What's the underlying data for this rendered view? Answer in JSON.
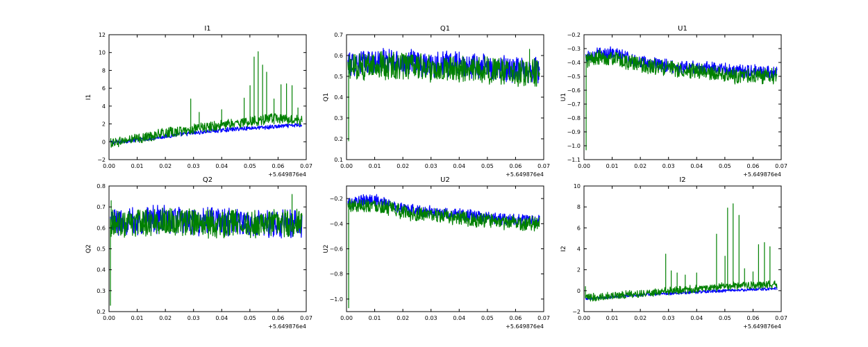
{
  "chart_data": [
    {
      "type": "line",
      "title": "I1",
      "ylabel": "I1",
      "xlabel": "",
      "x_offset_label": "+5.649876e4",
      "xlim": [
        0.0,
        0.07
      ],
      "ylim": [
        -2,
        12
      ],
      "xticks": [
        "0.00",
        "0.01",
        "0.02",
        "0.03",
        "0.04",
        "0.05",
        "0.06",
        "0.07"
      ],
      "yticks": [
        "−2",
        "0",
        "2",
        "4",
        "6",
        "8",
        "10",
        "12"
      ],
      "x_extent": [
        0.0005,
        0.0685
      ],
      "series": [
        {
          "color": "#0000ff",
          "values": [
            -0.1,
            0.05,
            0.2,
            0.35,
            0.55,
            0.75,
            0.9,
            1.05,
            1.2,
            1.35,
            1.45,
            1.55,
            1.6,
            1.7,
            1.8,
            1.9
          ],
          "spread": 0.25
        },
        {
          "color": "#008000",
          "values": [
            -0.1,
            0.1,
            0.3,
            0.6,
            0.9,
            1.1,
            1.3,
            1.5,
            1.7,
            1.9,
            2.1,
            2.3,
            2.5,
            2.6,
            2.5,
            2.4
          ],
          "spread": 0.6,
          "spikes": [
            [
              0.029,
              4.8
            ],
            [
              0.032,
              3.3
            ],
            [
              0.04,
              3.6
            ],
            [
              0.048,
              4.9
            ],
            [
              0.05,
              6.3
            ],
            [
              0.0515,
              9.5
            ],
            [
              0.053,
              10.1
            ],
            [
              0.0545,
              8.6
            ],
            [
              0.056,
              7.8
            ],
            [
              0.0585,
              4.8
            ],
            [
              0.061,
              6.4
            ],
            [
              0.063,
              6.5
            ],
            [
              0.065,
              6.3
            ],
            [
              0.067,
              3.8
            ]
          ]
        }
      ]
    },
    {
      "type": "line",
      "title": "Q1",
      "ylabel": "Q1",
      "xlabel": "",
      "x_offset_label": "+5.649876e4",
      "xlim": [
        0.0,
        0.07
      ],
      "ylim": [
        0.1,
        0.7
      ],
      "xticks": [
        "0.00",
        "0.01",
        "0.02",
        "0.03",
        "0.04",
        "0.05",
        "0.06",
        "0.07"
      ],
      "yticks": [
        "0.1",
        "0.2",
        "0.3",
        "0.4",
        "0.5",
        "0.6",
        "0.7"
      ],
      "x_extent": [
        0.0005,
        0.0685
      ],
      "series": [
        {
          "color": "#0000ff",
          "values": [
            0.56,
            0.57,
            0.57,
            0.57,
            0.57,
            0.57,
            0.56,
            0.56,
            0.56,
            0.55,
            0.55,
            0.54,
            0.54,
            0.53,
            0.53,
            0.53
          ],
          "spread": 0.065
        },
        {
          "color": "#008000",
          "values": [
            0.55,
            0.55,
            0.55,
            0.55,
            0.55,
            0.55,
            0.54,
            0.54,
            0.54,
            0.53,
            0.53,
            0.53,
            0.52,
            0.52,
            0.52,
            0.52
          ],
          "spread": 0.07,
          "spikes": [
            [
              0.0008,
              0.19
            ],
            [
              0.065,
              0.63
            ]
          ]
        }
      ]
    },
    {
      "type": "line",
      "title": "U1",
      "ylabel": "U1",
      "xlabel": "",
      "x_offset_label": "+5.649876e4",
      "xlim": [
        0.0,
        0.07
      ],
      "ylim": [
        -1.1,
        -0.2
      ],
      "xticks": [
        "0.00",
        "0.01",
        "0.02",
        "0.03",
        "0.04",
        "0.05",
        "0.06",
        "0.07"
      ],
      "yticks": [
        "−1.1",
        "−1.0",
        "−0.9",
        "−0.8",
        "−0.7",
        "−0.6",
        "−0.5",
        "−0.4",
        "−0.3",
        "−0.2"
      ],
      "x_extent": [
        0.0005,
        0.0685
      ],
      "series": [
        {
          "color": "#0000ff",
          "values": [
            -0.36,
            -0.34,
            -0.33,
            -0.36,
            -0.39,
            -0.41,
            -0.42,
            -0.43,
            -0.43,
            -0.44,
            -0.44,
            -0.45,
            -0.46,
            -0.46,
            -0.47,
            -0.47
          ],
          "spread": 0.05
        },
        {
          "color": "#008000",
          "values": [
            -0.38,
            -0.37,
            -0.37,
            -0.39,
            -0.41,
            -0.43,
            -0.44,
            -0.45,
            -0.46,
            -0.47,
            -0.48,
            -0.49,
            -0.5,
            -0.5,
            -0.5,
            -0.5
          ],
          "spread": 0.06,
          "spikes": [
            [
              0.0008,
              -1.03
            ]
          ]
        }
      ]
    },
    {
      "type": "line",
      "title": "Q2",
      "ylabel": "Q2",
      "xlabel": "",
      "x_offset_label": "+5.649876e4",
      "xlim": [
        0.0,
        0.07
      ],
      "ylim": [
        0.2,
        0.8
      ],
      "xticks": [
        "0.00",
        "0.01",
        "0.02",
        "0.03",
        "0.04",
        "0.05",
        "0.06",
        "0.07"
      ],
      "yticks": [
        "0.2",
        "0.3",
        "0.4",
        "0.5",
        "0.6",
        "0.7",
        "0.8"
      ],
      "x_extent": [
        0.0005,
        0.0685
      ],
      "series": [
        {
          "color": "#0000ff",
          "values": [
            0.63,
            0.63,
            0.63,
            0.64,
            0.64,
            0.64,
            0.63,
            0.63,
            0.63,
            0.63,
            0.63,
            0.62,
            0.62,
            0.62,
            0.62,
            0.62
          ],
          "spread": 0.07
        },
        {
          "color": "#008000",
          "values": [
            0.62,
            0.62,
            0.62,
            0.63,
            0.63,
            0.63,
            0.63,
            0.62,
            0.62,
            0.62,
            0.62,
            0.62,
            0.62,
            0.62,
            0.62,
            0.62
          ],
          "spread": 0.07,
          "spikes": [
            [
              0.0005,
              0.23
            ],
            [
              0.0008,
              0.73
            ],
            [
              0.065,
              0.76
            ]
          ]
        }
      ]
    },
    {
      "type": "line",
      "title": "U2",
      "ylabel": "U2",
      "xlabel": "",
      "x_offset_label": "+5.649876e4",
      "xlim": [
        0.0,
        0.07
      ],
      "ylim": [
        -1.1,
        -0.1
      ],
      "xticks": [
        "0.00",
        "0.01",
        "0.02",
        "0.03",
        "0.04",
        "0.05",
        "0.06",
        "0.07"
      ],
      "yticks": [
        "−1.0",
        "−0.8",
        "−0.6",
        "−0.4",
        "−0.2"
      ],
      "ytick_values": [
        -1.0,
        -0.8,
        -0.6,
        -0.4,
        -0.2
      ],
      "x_extent": [
        0.0005,
        0.0685
      ],
      "series": [
        {
          "color": "#0000ff",
          "values": [
            -0.24,
            -0.22,
            -0.21,
            -0.24,
            -0.27,
            -0.29,
            -0.3,
            -0.31,
            -0.32,
            -0.33,
            -0.34,
            -0.35,
            -0.36,
            -0.37,
            -0.37,
            -0.38
          ],
          "spread": 0.05
        },
        {
          "color": "#008000",
          "values": [
            -0.26,
            -0.25,
            -0.25,
            -0.27,
            -0.3,
            -0.32,
            -0.33,
            -0.34,
            -0.35,
            -0.36,
            -0.37,
            -0.38,
            -0.39,
            -0.39,
            -0.4,
            -0.4
          ],
          "spread": 0.06,
          "spikes": [
            [
              0.0008,
              -1.07
            ]
          ]
        }
      ]
    },
    {
      "type": "line",
      "title": "I2",
      "ylabel": "I2",
      "xlabel": "",
      "x_offset_label": "+5.649876e4",
      "xlim": [
        0.0,
        0.07
      ],
      "ylim": [
        -2,
        10
      ],
      "xticks": [
        "0.00",
        "0.01",
        "0.02",
        "0.03",
        "0.04",
        "0.05",
        "0.06",
        "0.07"
      ],
      "yticks": [
        "−2",
        "0",
        "2",
        "4",
        "6",
        "8",
        "10"
      ],
      "x_extent": [
        0.0005,
        0.0685
      ],
      "series": [
        {
          "color": "#0000ff",
          "values": [
            -0.75,
            -0.7,
            -0.6,
            -0.5,
            -0.45,
            -0.35,
            -0.3,
            -0.25,
            -0.2,
            -0.1,
            -0.05,
            0.0,
            0.05,
            0.1,
            0.15,
            0.2
          ],
          "spread": 0.15
        },
        {
          "color": "#008000",
          "values": [
            -0.7,
            -0.6,
            -0.5,
            -0.4,
            -0.3,
            -0.2,
            -0.1,
            0.0,
            0.1,
            0.2,
            0.3,
            0.4,
            0.5,
            0.5,
            0.55,
            0.6
          ],
          "spread": 0.4,
          "spikes": [
            [
              0.0005,
              0.4
            ],
            [
              0.029,
              3.5
            ],
            [
              0.031,
              1.9
            ],
            [
              0.033,
              1.7
            ],
            [
              0.036,
              1.5
            ],
            [
              0.04,
              1.7
            ],
            [
              0.047,
              5.4
            ],
            [
              0.05,
              3.3
            ],
            [
              0.051,
              7.9
            ],
            [
              0.053,
              8.3
            ],
            [
              0.055,
              7.2
            ],
            [
              0.057,
              2.1
            ],
            [
              0.06,
              1.8
            ],
            [
              0.062,
              4.4
            ],
            [
              0.064,
              4.6
            ],
            [
              0.066,
              4.2
            ]
          ]
        }
      ]
    }
  ]
}
